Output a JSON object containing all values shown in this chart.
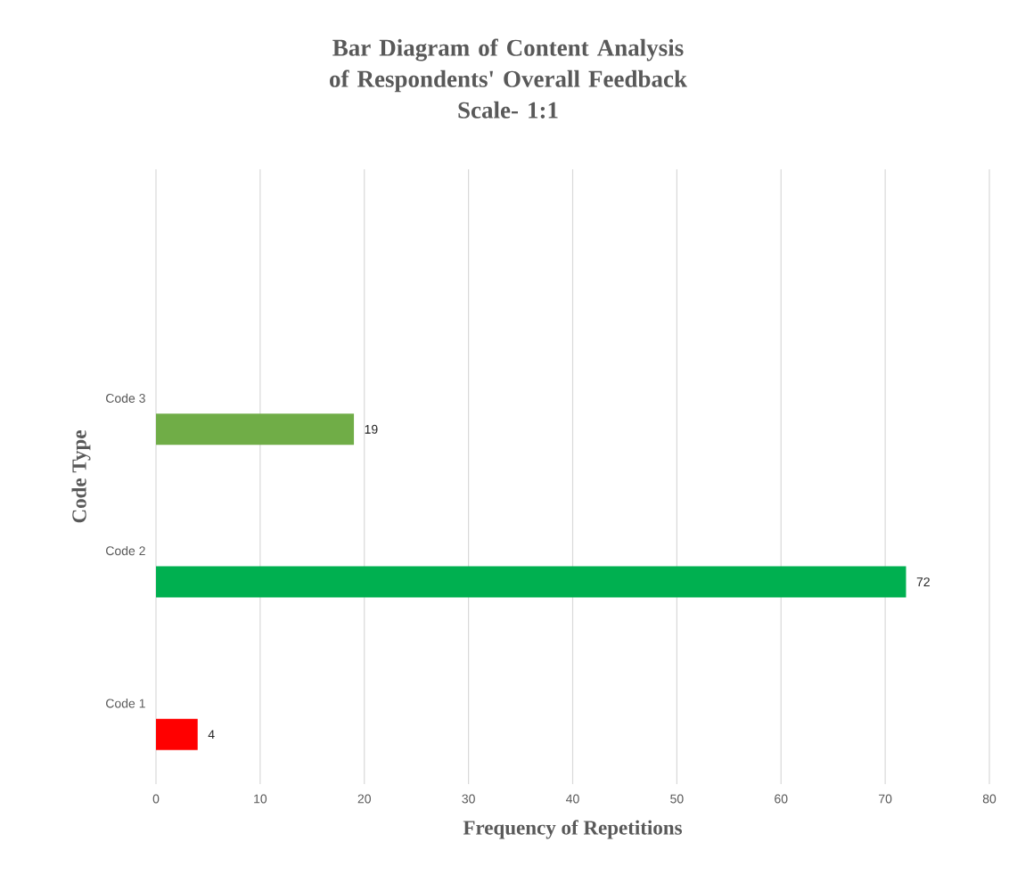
{
  "chart_data": {
    "type": "bar",
    "orientation": "horizontal",
    "title": "Bar Diagram of Content Analysis of Respondents' Overall Feedback",
    "subtitle": "Scale- 1:1",
    "xlabel": "Frequency of Repetitions",
    "ylabel": "Code Type",
    "categories": [
      "Code 3",
      "Code 2",
      "Code 1"
    ],
    "values": [
      19,
      72,
      4
    ],
    "colors": [
      "#70ad47",
      "#00b050",
      "#ff0000"
    ],
    "xlim": [
      0,
      80
    ],
    "xticks": [
      0,
      10,
      20,
      30,
      40,
      50,
      60,
      70,
      80
    ],
    "grid": "x",
    "data_labels": true
  }
}
